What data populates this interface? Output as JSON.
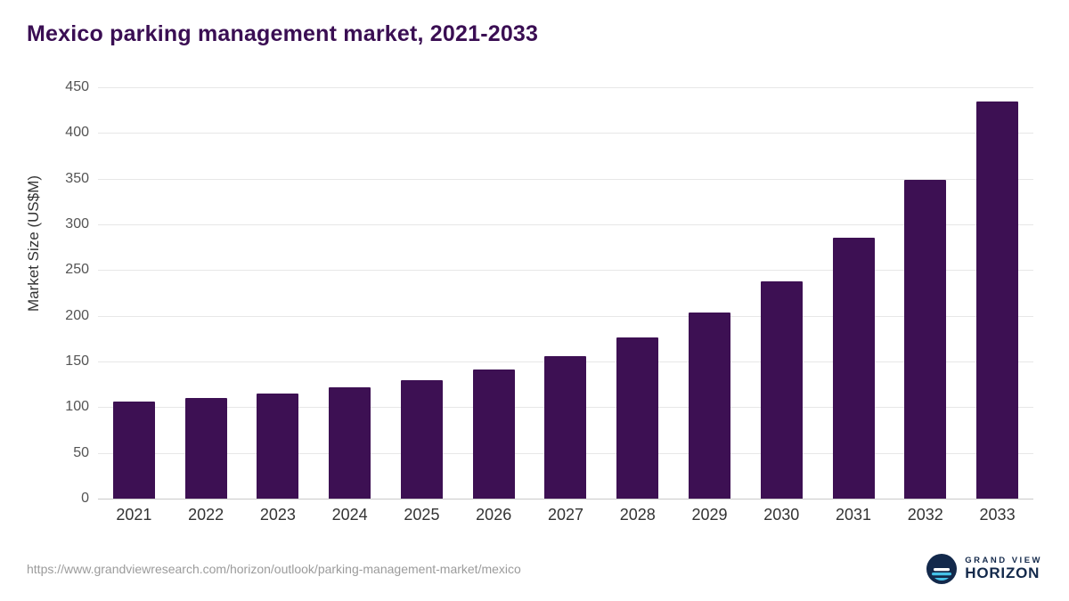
{
  "chart_data": {
    "type": "bar",
    "title": "Mexico parking management market, 2021-2033",
    "ylabel": "Market Size (US$M)",
    "xlabel": "",
    "categories": [
      "2021",
      "2022",
      "2023",
      "2024",
      "2025",
      "2026",
      "2027",
      "2028",
      "2029",
      "2030",
      "2031",
      "2032",
      "2033"
    ],
    "values": [
      106,
      110,
      115,
      122,
      130,
      141,
      156,
      176,
      204,
      238,
      285,
      349,
      434
    ],
    "ylim": [
      0,
      450
    ],
    "yticks": [
      0,
      50,
      100,
      150,
      200,
      250,
      300,
      350,
      400,
      450
    ],
    "grid": "horizontal",
    "legend": "none",
    "bar_color": "#3d1053"
  },
  "footer": {
    "source_url": "https://www.grandviewresearch.com/horizon/outlook/parking-management-market/mexico",
    "brand_top": "GRAND VIEW",
    "brand_bottom": "HORIZON"
  }
}
